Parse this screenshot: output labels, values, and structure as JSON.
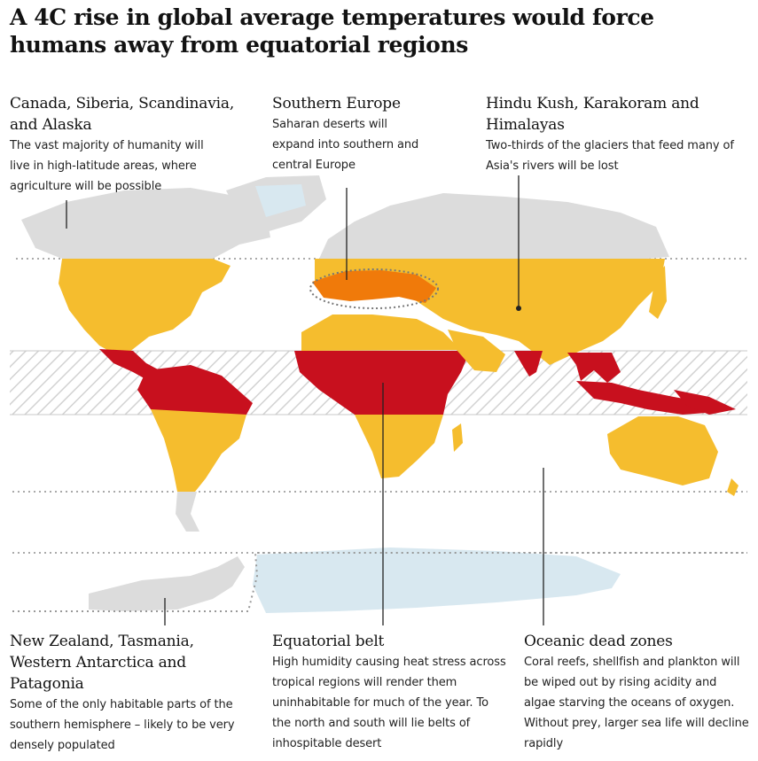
{
  "title": "A 4C rise in global average temperatures would force humans away from equatorial regions",
  "colors": {
    "background": "#ffffff",
    "habitable_land": "#dcdcdc",
    "temperate_band": "#f5bd2e",
    "desert_expansion": "#f07a0a",
    "uninhabitable_equatorial": "#c8101e",
    "ocean_ice": "#d8e8f0",
    "equatorial_hatch": "#cfcfcf",
    "guide_lines": "#222222"
  },
  "annotations": {
    "high_latitudes": {
      "heading": "Canada, Siberia, Scandinavia, and Alaska",
      "body": "The vast majority of humanity will live in high-latitude areas, where agriculture will be possible"
    },
    "southern_europe": {
      "heading": "Southern Europe",
      "body": "Saharan deserts will expand into southern and central Europe"
    },
    "himalayas": {
      "heading": "Hindu Kush, Karakoram and Himalayas",
      "body": "Two-thirds of the glaciers that feed many of Asia's rivers will be lost"
    },
    "southern_refuges": {
      "heading": "New Zealand, Tasmania, Western Antarctica and Patagonia",
      "body": "Some of the only habitable parts of the southern hemisphere – likely to be very densely populated"
    },
    "equatorial_belt": {
      "heading": "Equatorial belt",
      "body": "High humidity causing heat stress across tropical regions will render them uninhabitable for much of the year. To the north and south will lie belts of inhospitable desert"
    },
    "dead_zones": {
      "heading": "Oceanic dead zones",
      "body": "Coral reefs, shellfish and plankton will be wiped out by rising acidity and algae starving the oceans of oxygen. Without prey, larger sea life will decline rapidly"
    }
  }
}
